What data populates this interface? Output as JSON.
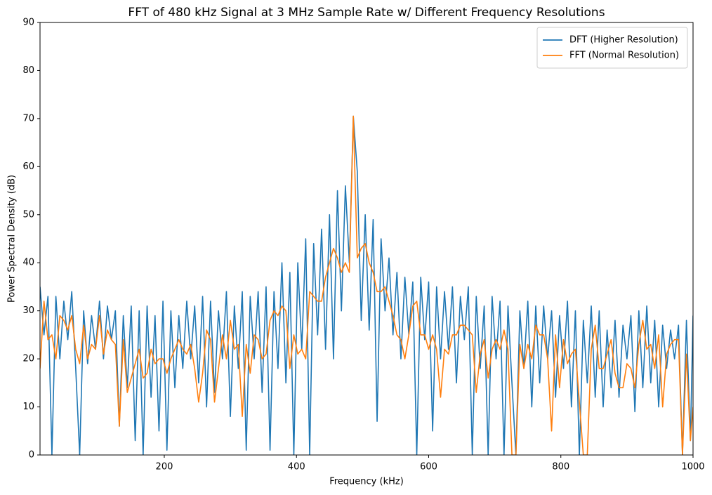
{
  "chart_data": {
    "type": "line",
    "title": "FFT of 480 kHz Signal at 3 MHz Sample Rate w/ Different Frequency Resolutions",
    "xlabel": "Frequency (kHz)",
    "ylabel": "Power Spectral Density (dB)",
    "xlim": [
      12,
      1000
    ],
    "ylim": [
      0,
      90
    ],
    "xticks": [
      200,
      400,
      600,
      800,
      1000
    ],
    "yticks": [
      0,
      10,
      20,
      30,
      40,
      50,
      60,
      70,
      80,
      90
    ],
    "grid": false,
    "legend": "upper right",
    "x": [
      12,
      18,
      24,
      30,
      36,
      42,
      48,
      54,
      60,
      66,
      72,
      78,
      84,
      90,
      96,
      102,
      108,
      114,
      120,
      126,
      132,
      138,
      144,
      150,
      156,
      162,
      168,
      174,
      180,
      186,
      192,
      198,
      204,
      210,
      216,
      222,
      228,
      234,
      240,
      246,
      252,
      258,
      264,
      270,
      276,
      282,
      288,
      294,
      300,
      306,
      312,
      318,
      324,
      330,
      336,
      342,
      348,
      354,
      360,
      366,
      372,
      378,
      384,
      390,
      396,
      402,
      408,
      414,
      420,
      426,
      432,
      438,
      444,
      450,
      456,
      462,
      468,
      474,
      480,
      486,
      492,
      498,
      504,
      510,
      516,
      522,
      528,
      534,
      540,
      546,
      552,
      558,
      564,
      570,
      576,
      582,
      588,
      594,
      600,
      606,
      612,
      618,
      624,
      630,
      636,
      642,
      648,
      654,
      660,
      666,
      672,
      678,
      684,
      690,
      696,
      702,
      708,
      714,
      720,
      726,
      732,
      738,
      744,
      750,
      756,
      762,
      768,
      774,
      780,
      786,
      792,
      798,
      804,
      810,
      816,
      822,
      828,
      834,
      840,
      846,
      852,
      858,
      864,
      870,
      876,
      882,
      888,
      894,
      900,
      906,
      912,
      918,
      924,
      930,
      936,
      942,
      948,
      954,
      960,
      966,
      972,
      978,
      984,
      990,
      996,
      1000
    ],
    "series": [
      {
        "name": "DFT (Higher Resolution)",
        "color": "#1f77b4",
        "values": [
          35,
          25,
          33,
          0,
          33,
          20,
          32,
          24,
          34,
          18,
          0,
          30,
          19,
          29,
          22,
          32,
          20,
          31,
          24,
          30,
          6,
          29,
          14,
          31,
          3,
          30,
          0,
          31,
          12,
          29,
          5,
          32,
          1,
          30,
          14,
          29,
          18,
          32,
          20,
          31,
          15,
          33,
          10,
          32,
          13,
          30,
          20,
          34,
          8,
          31,
          18,
          34,
          1,
          33,
          20,
          34,
          13,
          35,
          1,
          34,
          18,
          40,
          15,
          38,
          0,
          40,
          22,
          45,
          0,
          44,
          25,
          47,
          22,
          50,
          20,
          55,
          30,
          56,
          40,
          70.5,
          59,
          28,
          50,
          26,
          49,
          7,
          45,
          30,
          41,
          25,
          38,
          20,
          37,
          25,
          36,
          0,
          37,
          24,
          36,
          5,
          35,
          20,
          34,
          22,
          35,
          15,
          33,
          24,
          35,
          0,
          33,
          18,
          31,
          0,
          33,
          20,
          32,
          0,
          31,
          15,
          0,
          30,
          18,
          32,
          10,
          31,
          15,
          31,
          20,
          30,
          12,
          29,
          18,
          32,
          10,
          30,
          0,
          28,
          15,
          31,
          12,
          30,
          10,
          26,
          14,
          28,
          12,
          27,
          20,
          29,
          9,
          30,
          14,
          31,
          15,
          28,
          10,
          27,
          18,
          26,
          20,
          27,
          0,
          28,
          3,
          29
        ]
      },
      {
        "name": "FFT (Normal Resolution)",
        "color": "#ff7f0e",
        "values": [
          18,
          32,
          24,
          25,
          20,
          29,
          28,
          26,
          29,
          22,
          19,
          27,
          20,
          23,
          22,
          29,
          21,
          26,
          24,
          23,
          6,
          24,
          13,
          16,
          19,
          22,
          16,
          17,
          22,
          19,
          20,
          20,
          17,
          20,
          22,
          24,
          22,
          21,
          23,
          18,
          11,
          17,
          26,
          24,
          11,
          18,
          25,
          20,
          28,
          22,
          23,
          8,
          23,
          17,
          25,
          24,
          20,
          21,
          28,
          30,
          29,
          31,
          30,
          18,
          25,
          21,
          22,
          20,
          34,
          33,
          32,
          32,
          37,
          40,
          43,
          41,
          38,
          40,
          38,
          70.5,
          41,
          43,
          44,
          40,
          38,
          34,
          34,
          35,
          32,
          29,
          25,
          24,
          20,
          25,
          31,
          32,
          25,
          25,
          22,
          25,
          22,
          12,
          22,
          21,
          25,
          25,
          27,
          27,
          26,
          25,
          13,
          21,
          24,
          16,
          22,
          24,
          22,
          26,
          22,
          0,
          0,
          23,
          18,
          23,
          20,
          27,
          25,
          25,
          20,
          5,
          25,
          14,
          24,
          19,
          21,
          22,
          11,
          0,
          0,
          22,
          27,
          18,
          18,
          21,
          24,
          17,
          14,
          14,
          19,
          18,
          14,
          23,
          28,
          22,
          23,
          18,
          25,
          10,
          21,
          23,
          24,
          24,
          0,
          21,
          3,
          10
        ]
      }
    ]
  }
}
